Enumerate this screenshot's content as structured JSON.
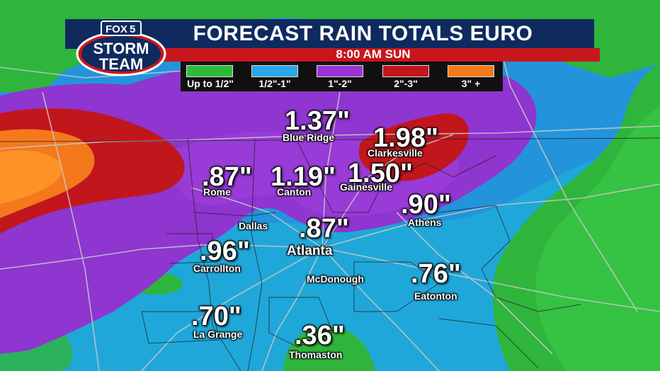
{
  "header": {
    "title": "FORECAST RAIN TOTALS EURO",
    "time": "8:00 AM SUN"
  },
  "logo": {
    "network": "FOX",
    "channel": "5",
    "line1": "STORM",
    "line2": "TEAM"
  },
  "legend": {
    "items": [
      {
        "label": "Up to 1/2\"",
        "color": "#2bbd3a"
      },
      {
        "label": "1/2\"-1\"",
        "color": "#2aa7e8"
      },
      {
        "label": "1\"-2\"",
        "color": "#9b33d6"
      },
      {
        "label": "2\"-3\"",
        "color": "#c4151c"
      },
      {
        "label": "3\" +",
        "color": "#f47a1c"
      }
    ]
  },
  "locations": [
    {
      "city": "Blue Ridge",
      "amount": "1.37\""
    },
    {
      "city": "Clarkesville",
      "amount": "1.98\""
    },
    {
      "city": "Rome",
      "amount": ".87\""
    },
    {
      "city": "Canton",
      "amount": "1.19\""
    },
    {
      "city": "Gainesville",
      "amount": "1.50\""
    },
    {
      "city": "Athens",
      "amount": ".90\""
    },
    {
      "city": "Dallas",
      "amount": ""
    },
    {
      "city": "Atlanta",
      "amount": ".87\""
    },
    {
      "city": "Carrollton",
      "amount": ".96\""
    },
    {
      "city": "McDonough",
      "amount": ""
    },
    {
      "city": "Eatonton",
      "amount": ".76\""
    },
    {
      "city": "La Grange",
      "amount": ".70\""
    },
    {
      "city": "Thomaston",
      "amount": ".36\""
    }
  ]
}
